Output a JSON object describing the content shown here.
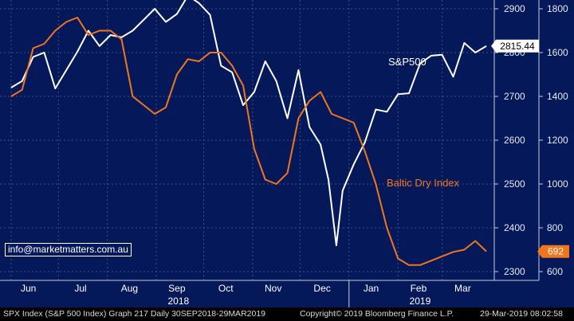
{
  "chart_data": {
    "type": "line",
    "x_months": [
      "Jun",
      "Jul",
      "Aug",
      "Sep",
      "Oct",
      "Nov",
      "Dec",
      "Jan",
      "Feb",
      "Mar"
    ],
    "x_years": [
      "2018",
      "2019"
    ],
    "y_left": {
      "label": "",
      "ticks": [
        2300,
        2400,
        2500,
        2600,
        2700,
        2800,
        2900
      ],
      "range": [
        2280,
        2920
      ]
    },
    "y_right": {
      "label": "",
      "ticks": [
        600,
        800,
        1000,
        1200,
        1400,
        1600,
        1800
      ],
      "range": [
        560,
        1840
      ]
    },
    "grid": true,
    "series": [
      {
        "name": "S&P500",
        "axis": "left",
        "color": "#ffffff",
        "last_value": "2815.44",
        "x": [
          "2018-06-01",
          "2018-06-08",
          "2018-06-15",
          "2018-06-22",
          "2018-06-29",
          "2018-07-06",
          "2018-07-13",
          "2018-07-20",
          "2018-07-27",
          "2018-08-03",
          "2018-08-10",
          "2018-08-17",
          "2018-08-24",
          "2018-08-31",
          "2018-09-07",
          "2018-09-14",
          "2018-09-21",
          "2018-09-28",
          "2018-10-05",
          "2018-10-12",
          "2018-10-19",
          "2018-10-26",
          "2018-11-02",
          "2018-11-09",
          "2018-11-16",
          "2018-11-23",
          "2018-11-30",
          "2018-12-07",
          "2018-12-14",
          "2018-12-19",
          "2018-12-24",
          "2018-12-28",
          "2019-01-04",
          "2019-01-11",
          "2019-01-18",
          "2019-01-25",
          "2019-02-01",
          "2019-02-08",
          "2019-02-15",
          "2019-02-22",
          "2019-03-01",
          "2019-03-08",
          "2019-03-15",
          "2019-03-22",
          "2019-03-29"
        ],
        "values": [
          2720,
          2735,
          2790,
          2800,
          2718,
          2760,
          2802,
          2850,
          2815,
          2840,
          2835,
          2850,
          2875,
          2900,
          2870,
          2888,
          2930,
          2913,
          2886,
          2770,
          2755,
          2680,
          2710,
          2780,
          2735,
          2650,
          2760,
          2630,
          2590,
          2510,
          2360,
          2485,
          2545,
          2595,
          2670,
          2665,
          2705,
          2707,
          2775,
          2793,
          2795,
          2745,
          2822,
          2800,
          2815
        ]
      },
      {
        "name": "Baltic Dry Index",
        "axis": "right",
        "color": "#f0761e",
        "last_value": "692",
        "x": [
          "2018-06-01",
          "2018-06-08",
          "2018-06-15",
          "2018-06-22",
          "2018-06-29",
          "2018-07-06",
          "2018-07-13",
          "2018-07-20",
          "2018-07-27",
          "2018-08-03",
          "2018-08-10",
          "2018-08-17",
          "2018-08-24",
          "2018-08-31",
          "2018-09-07",
          "2018-09-14",
          "2018-09-21",
          "2018-09-28",
          "2018-10-05",
          "2018-10-12",
          "2018-10-19",
          "2018-10-26",
          "2018-11-02",
          "2018-11-09",
          "2018-11-16",
          "2018-11-23",
          "2018-11-30",
          "2018-12-07",
          "2018-12-14",
          "2018-12-21",
          "2018-12-28",
          "2019-01-04",
          "2019-01-11",
          "2019-01-18",
          "2019-01-25",
          "2019-02-01",
          "2019-02-08",
          "2019-02-15",
          "2019-02-22",
          "2019-03-01",
          "2019-03-08",
          "2019-03-15",
          "2019-03-22",
          "2019-03-29"
        ],
        "values": [
          1400,
          1430,
          1620,
          1640,
          1700,
          1740,
          1760,
          1680,
          1700,
          1700,
          1660,
          1400,
          1360,
          1320,
          1350,
          1500,
          1570,
          1560,
          1600,
          1600,
          1540,
          1450,
          1160,
          1020,
          1000,
          1050,
          1300,
          1380,
          1420,
          1320,
          1300,
          1280,
          1150,
          1000,
          800,
          660,
          630,
          630,
          650,
          670,
          690,
          700,
          740,
          692
        ]
      }
    ],
    "annotations": [
      {
        "text": "S&P500",
        "color": "#ffffff"
      },
      {
        "text": "Baltic Dry Index",
        "color": "#f0761e"
      }
    ],
    "watermark": "info@marketmatters.com.au"
  },
  "footer": {
    "left": "SPX Index (S&P 500 Index) Graph 217  Daily 30SEP2018-29MAR2019",
    "middle": "Copyright© 2019 Bloomberg Finance L.P.",
    "right": "29-Mar-2019 08:02:58"
  }
}
